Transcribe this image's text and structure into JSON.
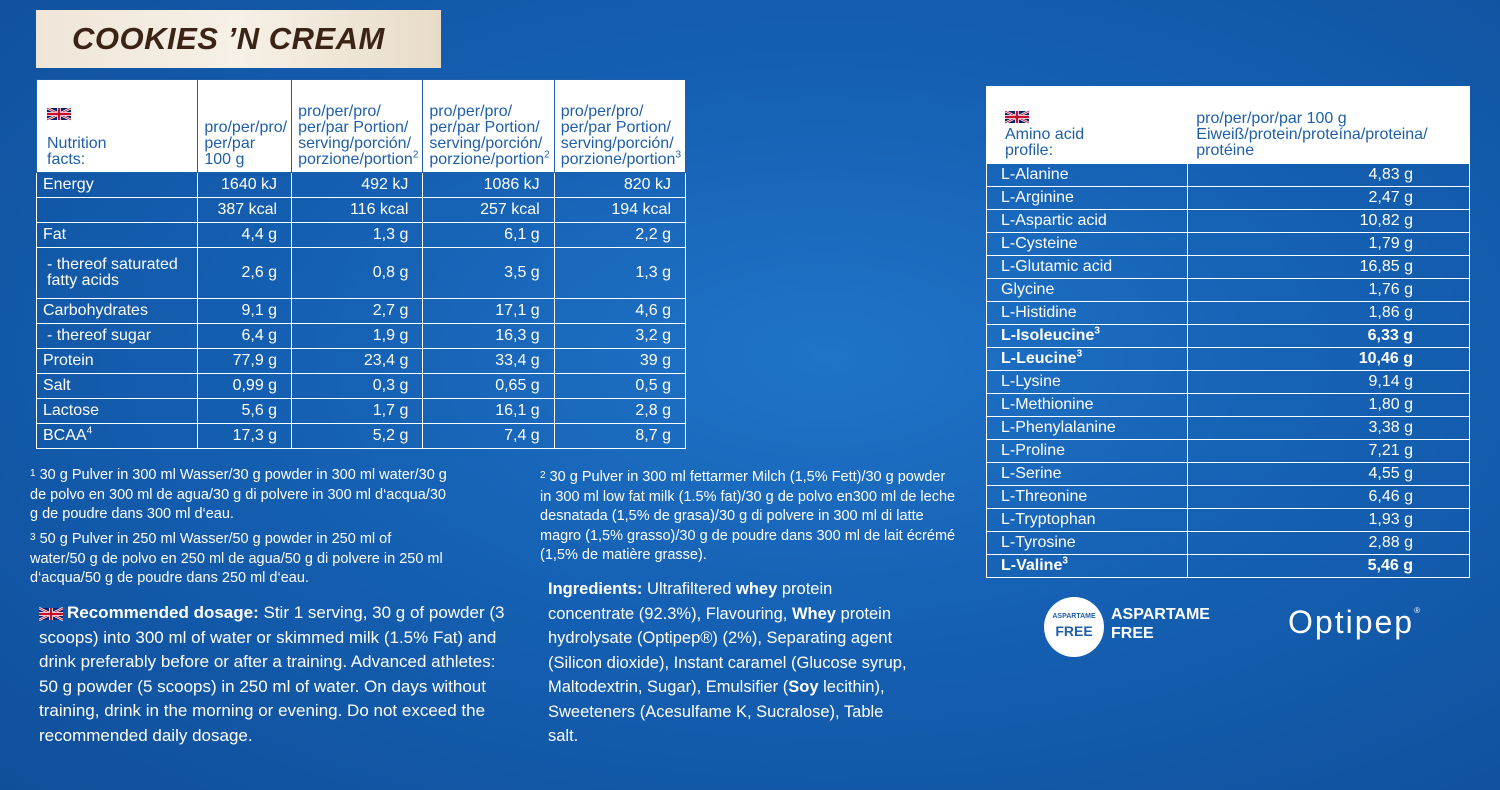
{
  "banner": {
    "title": "COOKIES ’N CREAM"
  },
  "nutrition": {
    "header": {
      "col0": [
        "Nutrition",
        "facts:"
      ],
      "col1": [
        "pro/per/pro/",
        "per/par",
        "100 g"
      ],
      "col2": [
        "pro/per/pro/",
        "per/par Portion/",
        "serving/porción/",
        "porzione/portion"
      ],
      "col2_sup": "2",
      "col3": [
        "pro/per/pro/",
        "per/par Portion/",
        "serving/porción/",
        "porzione/portion"
      ],
      "col3_sup": "2",
      "col4": [
        "pro/per/pro/",
        "per/par Portion/",
        "serving/porción/",
        "porzione/portion"
      ],
      "col4_sup": "3"
    },
    "rows": [
      {
        "label": "Energy",
        "v": [
          "1640 kJ",
          "492 kJ",
          "1086 kJ",
          "820 kJ"
        ]
      },
      {
        "label": "",
        "v": [
          "387 kcal",
          "116 kcal",
          "257 kcal",
          "194 kcal"
        ]
      },
      {
        "label": "Fat",
        "v": [
          "4,4 g",
          "1,3 g",
          "6,1 g",
          "2,2 g"
        ]
      },
      {
        "label": "- thereof saturated fatty acids",
        "v": [
          "2,6 g",
          "0,8 g",
          "3,5 g",
          "1,3 g"
        ]
      },
      {
        "label": "Carbohydrates",
        "v": [
          "9,1 g",
          "2,7 g",
          "17,1 g",
          "4,6 g"
        ]
      },
      {
        "label": "- thereof sugar",
        "v": [
          "6,4 g",
          "1,9 g",
          "16,3 g",
          "3,2 g"
        ]
      },
      {
        "label": "Protein",
        "v": [
          "77,9 g",
          "23,4 g",
          "33,4 g",
          "39 g"
        ]
      },
      {
        "label": "Salt",
        "v": [
          "0,99 g",
          "0,3 g",
          "0,65 g",
          "0,5 g"
        ]
      },
      {
        "label": "Lactose",
        "v": [
          "5,6 g",
          "1,7 g",
          "16,1 g",
          "2,8 g"
        ]
      },
      {
        "label": "BCAA",
        "sup": "4",
        "v": [
          "17,3 g",
          "5,2 g",
          "7,4 g",
          "8,7 g"
        ]
      }
    ]
  },
  "footnotes": {
    "f1_num": "1",
    "f1": "30 g Pulver in 300 ml Wasser/30 g powder in 300 ml water/30 g de polvo en 300 ml de agua/30 g di polvere in 300 ml d‘acqua/30 g de poudre dans 300 ml d‘eau.",
    "f3_num": "3",
    "f3": "50 g Pulver in 250 ml Wasser/50 g powder in 250 ml of water/50 g de polvo en 250 ml de agua/50 g di polvere in 250 ml d‘acqua/50 g de poudre dans 250 ml d‘eau.",
    "f2_num": "2",
    "f2": "30 g Pulver in 300 ml fettarmer Milch (1,5% Fett)/30 g powder in 300 ml low fat milk (1.5% fat)/30 g de polvo en300 ml de leche desnatada (1,5% de grasa)/30 g di polvere in 300 ml di latte magro (1,5% grasso)/30 g de poudre dans 300 ml de lait écrémé (1,5% de matière grasse)."
  },
  "dosage": {
    "heading": "Recommended dosage:",
    "text": "Stir 1 serving, 30 g of powder (3 scoops) into 300 ml of water or skimmed milk (1.5% Fat) and drink preferably before or after a training. Advanced athletes: 50 g powder (5 scoops) in 250 ml of water. On days without training, drink in the morning or evening. Do not exceed the recommended daily dosage."
  },
  "ingredients": {
    "heading": "Ingredients:",
    "p1": "Ultrafiltered",
    "b1": "whey",
    "p2": "protein concentrate (92.3%), Flavouring,",
    "b2": "Whey",
    "p3": "protein hydrolysate (Optipep®) (2%), Separating agent (Silicon dioxide), Instant caramel (Glucose syrup, Maltodextrin, Sugar), Emulsifier (",
    "b3": "Soy",
    "p4": "lecithin), Sweeteners (Acesulfame K, Sucralose), Table salt."
  },
  "amino": {
    "header": {
      "col0": [
        "Amino acid",
        "profile:"
      ],
      "col1": [
        "pro/per/por/par 100 g",
        "Eiweiß/protein/proteína/proteina/",
        "protéine"
      ]
    },
    "rows": [
      {
        "name": "L-Alanine",
        "value": "4,83 g"
      },
      {
        "name": "L-Arginine",
        "value": "2,47 g"
      },
      {
        "name": "L-Aspartic acid",
        "value": "10,82 g"
      },
      {
        "name": "L-Cysteine",
        "value": "1,79 g"
      },
      {
        "name": "L-Glutamic acid",
        "value": "16,85 g"
      },
      {
        "name": "Glycine",
        "value": "1,76 g"
      },
      {
        "name": "L-Histidine",
        "value": "1,86 g"
      },
      {
        "name": "L-Isoleucine",
        "sup": "3",
        "value": "6,33 g",
        "bold": true
      },
      {
        "name": "L-Leucine",
        "sup": "3",
        "value": "10,46 g",
        "bold": true
      },
      {
        "name": "L-Lysine",
        "value": "9,14 g"
      },
      {
        "name": "L-Methionine",
        "value": "1,80 g"
      },
      {
        "name": "L-Phenylalanine",
        "value": "3,38 g"
      },
      {
        "name": "L-Proline",
        "value": "7,21 g"
      },
      {
        "name": "L-Serine",
        "value": "4,55 g"
      },
      {
        "name": "L-Threonine",
        "value": "6,46 g"
      },
      {
        "name": "L-Tryptophan",
        "value": "1,93 g"
      },
      {
        "name": "L-Tyrosine",
        "value": "2,88 g"
      },
      {
        "name": "L-Valine",
        "sup": "3",
        "value": "5,46 g",
        "bold": true
      }
    ]
  },
  "badges": {
    "aspartame_small": "ASPARTAME",
    "aspartame_big": "FREE",
    "aspartame_text": [
      "ASPARTAME",
      "FREE"
    ],
    "optipep": "Optipep",
    "optipep_reg": "®"
  },
  "colors": {
    "background": "#1560b3",
    "header_text": "#1f5fa8",
    "banner_text": "#3b2416"
  },
  "icons": {
    "flag": "uk-flag-icon"
  }
}
